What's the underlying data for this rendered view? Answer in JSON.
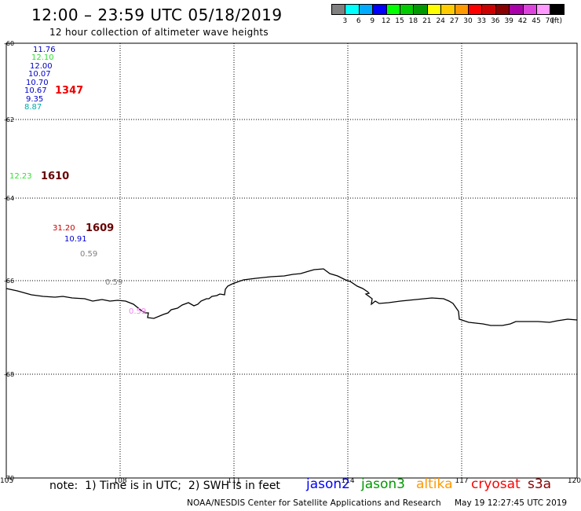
{
  "header": {
    "title": "12:00 – 23:59 UTC 05/18/2019",
    "subtitle": "12 hour collection of altimeter wave heights"
  },
  "legend": {
    "unit": "(ft)",
    "bins": [
      {
        "label": "3",
        "color": "#808080"
      },
      {
        "label": "6",
        "color": "#00ffff"
      },
      {
        "label": "9",
        "color": "#00aaff"
      },
      {
        "label": "12",
        "color": "#0000ff"
      },
      {
        "label": "15",
        "color": "#00ff00"
      },
      {
        "label": "18",
        "color": "#00cc00"
      },
      {
        "label": "21",
        "color": "#009900"
      },
      {
        "label": "24",
        "color": "#ffff00"
      },
      {
        "label": "27",
        "color": "#ffcc00"
      },
      {
        "label": "30",
        "color": "#ff9900"
      },
      {
        "label": "33",
        "color": "#ff0000"
      },
      {
        "label": "36",
        "color": "#cc0000"
      },
      {
        "label": "39",
        "color": "#880000"
      },
      {
        "label": "42",
        "color": "#aa00aa"
      },
      {
        "label": "45",
        "color": "#dd44dd"
      },
      {
        "label": "70",
        "color": "#ff99ff"
      },
      {
        "label": "",
        "color": "#000000"
      }
    ]
  },
  "map": {
    "lon_ticks": [
      "105",
      "108",
      "111",
      "114",
      "117",
      "120"
    ],
    "lat_ticks": [
      "-60",
      "-62",
      "-64",
      "-66",
      "-68",
      "-70"
    ]
  },
  "observations": [
    {
      "text": "11.76",
      "color": "#0000cc"
    },
    {
      "text": "12.10",
      "color": "#33dd33"
    },
    {
      "text": "12.00",
      "color": "#0000cc"
    },
    {
      "text": "10.07",
      "color": "#0000cc"
    },
    {
      "text": "10.70",
      "color": "#0000cc"
    },
    {
      "text": "10.67",
      "color": "#0000cc"
    },
    {
      "text": "9.35",
      "color": "#0000cc"
    },
    {
      "text": "8.87",
      "color": "#00aaaa"
    },
    {
      "text": "12.23",
      "color": "#33dd33"
    },
    {
      "text": "31.20",
      "color": "#cc0000"
    },
    {
      "text": "10.91",
      "color": "#0000cc"
    },
    {
      "text": "0.59",
      "color": "#808080"
    },
    {
      "text": "0.59",
      "color": "#808080"
    },
    {
      "text": "0.59",
      "color": "#ee88ee"
    }
  ],
  "passes": [
    {
      "text": "1347",
      "color": "#ee0000"
    },
    {
      "text": "1610",
      "color": "#660000"
    },
    {
      "text": "1609",
      "color": "#660000"
    }
  ],
  "footer": {
    "note": "note:  1) Time is in UTC;  2) SWH is in feet",
    "satellites": [
      {
        "name": "jason2",
        "color": "#0000ff"
      },
      {
        "name": "jason3",
        "color": "#009900"
      },
      {
        "name": "altika",
        "color": "#ff9900"
      },
      {
        "name": "cryosat",
        "color": "#ff0000"
      },
      {
        "name": "s3a",
        "color": "#880000"
      }
    ],
    "credit": "NOAA/NESDIS Center for Satellite Applications and Research",
    "timestamp": "May 19 12:27:45 UTC 2019"
  }
}
